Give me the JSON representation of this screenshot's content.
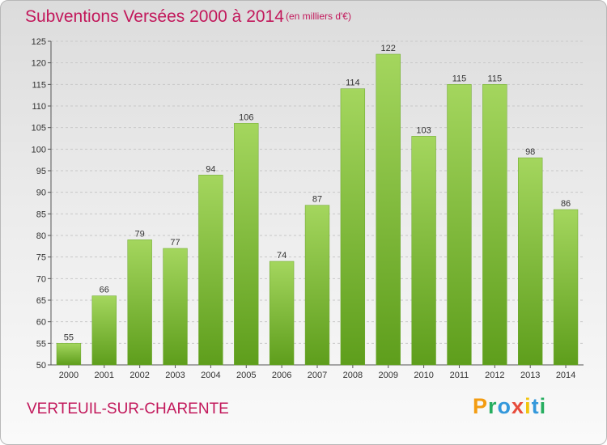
{
  "header": {
    "title": "Subventions Versées 2000 à 2014",
    "subtitle": "(en milliers d'€)"
  },
  "footer": {
    "commune": "VERTEUIL-SUR-CHARENTE",
    "logo_letters": [
      "P",
      "r",
      "o",
      "x",
      "i",
      "t",
      "i"
    ],
    "logo_colors": [
      "#f39c12",
      "#27ae60",
      "#3498db",
      "#e74c3c",
      "#f1c40f",
      "#3498db",
      "#27ae60"
    ]
  },
  "chart_data": {
    "type": "bar",
    "title": "Subventions Versées 2000 à 2014",
    "subtitle": "(en milliers d'€)",
    "categories": [
      "2000",
      "2001",
      "2002",
      "2003",
      "2004",
      "2005",
      "2006",
      "2007",
      "2008",
      "2009",
      "2010",
      "2011",
      "2012",
      "2013",
      "2014"
    ],
    "values": [
      55,
      66,
      79,
      77,
      94,
      106,
      74,
      87,
      114,
      122,
      103,
      115,
      115,
      98,
      86
    ],
    "ylim": [
      50,
      125
    ],
    "yticks": [
      50,
      55,
      60,
      65,
      70,
      75,
      80,
      85,
      90,
      95,
      100,
      105,
      110,
      115,
      120,
      125
    ],
    "grid": true,
    "bar_color": "#8cc63f"
  }
}
